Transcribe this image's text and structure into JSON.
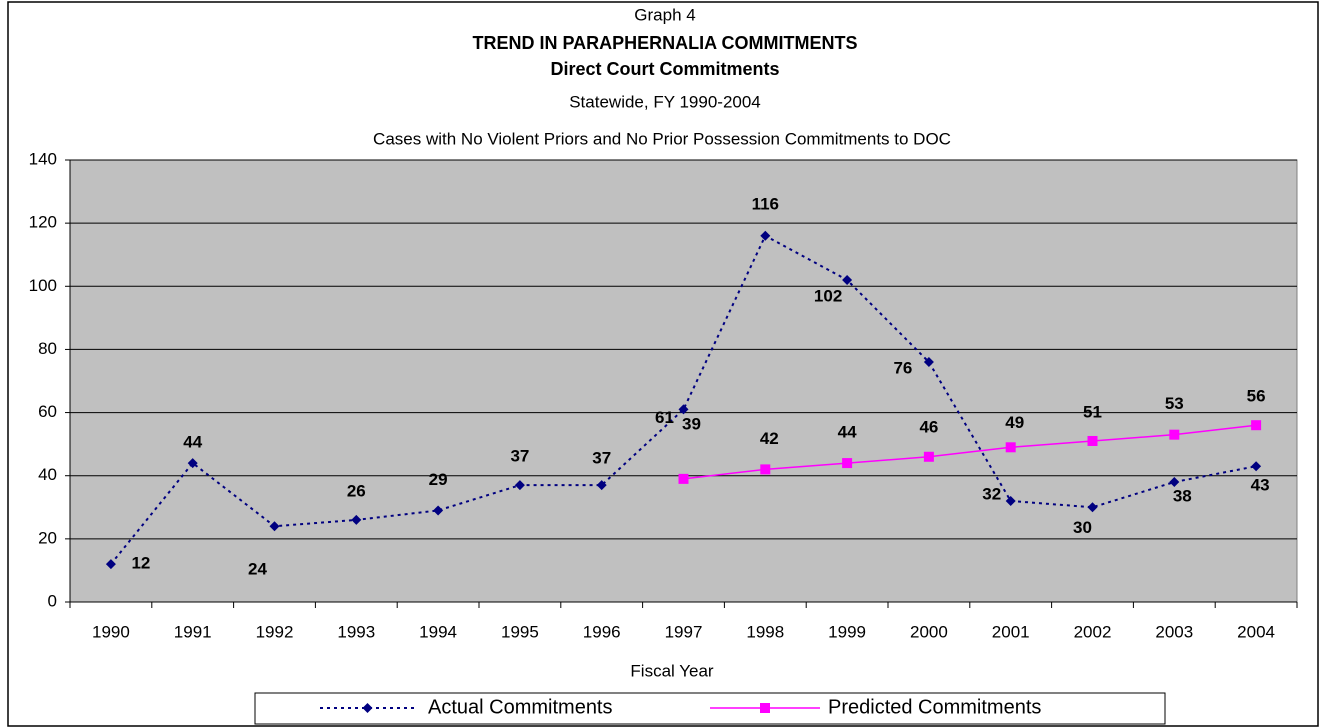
{
  "chart_data": {
    "type": "line",
    "title": "Graph 4",
    "subtitle": "TREND IN PARAPHERNALIA COMMITMENTS",
    "subtitle2": "Direct Court Commitments",
    "subtitle3": "Statewide, FY 1990-2004",
    "subtitle4": "Cases with No Violent Priors and No Prior Possession Commitments to DOC",
    "x_label": "Fiscal Year",
    "categories": [
      "1990",
      "1991",
      "1992",
      "1993",
      "1994",
      "1995",
      "1996",
      "1997",
      "1998",
      "1999",
      "2000",
      "2001",
      "2002",
      "2003",
      "2004"
    ],
    "series": [
      {
        "name": "Actual Commitments",
        "color": "#000080",
        "values": [
          12,
          44,
          24,
          26,
          29,
          37,
          37,
          61,
          116,
          102,
          76,
          32,
          30,
          38,
          43
        ]
      },
      {
        "name": "Predicted Commitments",
        "color": "#ff00ff",
        "values": [
          null,
          null,
          null,
          null,
          null,
          null,
          null,
          39,
          42,
          44,
          46,
          49,
          51,
          53,
          56
        ]
      }
    ],
    "ylim": [
      0,
      140
    ],
    "yticks": [
      0,
      20,
      40,
      60,
      80,
      100,
      120,
      140
    ],
    "grid": true,
    "legend": "bottom"
  }
}
